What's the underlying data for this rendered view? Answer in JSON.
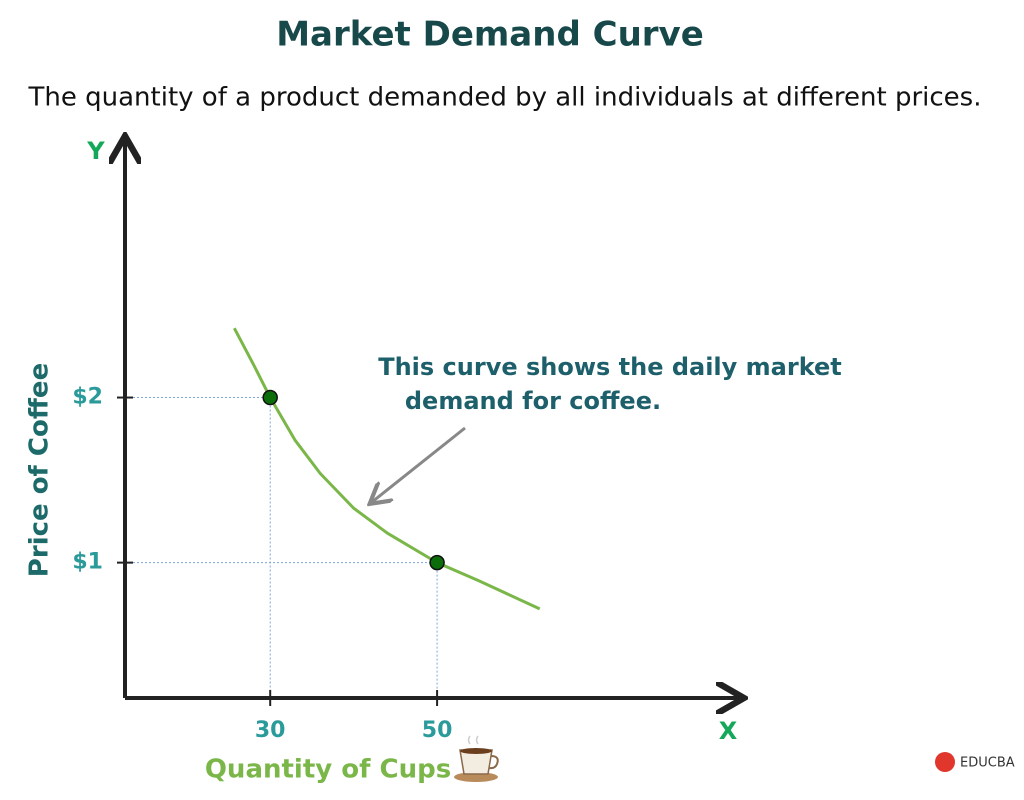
{
  "chart_data": {
    "type": "line",
    "title": "Market Demand Curve",
    "subtitle": "The quantity of a product demanded by all individuals at different prices.",
    "x_label": "Quantity of Cups",
    "y_label": "Price of Coffee",
    "x_axis_letter": "X",
    "y_axis_letter": "Y",
    "annotation": [
      "This curve shows the daily market",
      "demand for coffee."
    ],
    "xlim": [
      12.6,
      86.3
    ],
    "ylim": [
      0.18,
      3.56
    ],
    "xticks": [
      30,
      50
    ],
    "yticks": [
      {
        "value": 1,
        "label": "$1"
      },
      {
        "value": 2,
        "label": "$2"
      }
    ],
    "curve": {
      "color": "#7ab648",
      "x": [
        25.7,
        28,
        30,
        33,
        36,
        40,
        44,
        50,
        55,
        62.3
      ],
      "values": [
        2.42,
        2.2,
        2,
        1.74,
        1.54,
        1.33,
        1.18,
        1,
        0.89,
        0.72
      ]
    },
    "points": {
      "color": "#0b6e0b",
      "x": [
        30,
        50
      ],
      "values": [
        2,
        1
      ]
    },
    "logo": "EDUCBA"
  }
}
